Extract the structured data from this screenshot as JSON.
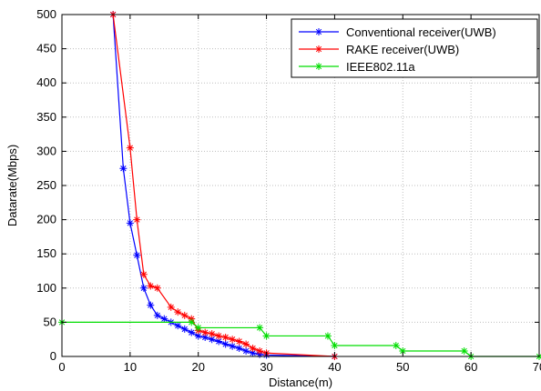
{
  "chart_data": {
    "type": "line",
    "xlabel": "Distance(m)",
    "ylabel": "Datarate(Mbps)",
    "xlim": [
      0,
      70
    ],
    "ylim": [
      0,
      500
    ],
    "xticks": [
      0,
      10,
      20,
      30,
      40,
      50,
      60,
      70
    ],
    "yticks": [
      0,
      50,
      100,
      150,
      200,
      250,
      300,
      350,
      400,
      450,
      500
    ],
    "grid": true,
    "legend_position": "top-right",
    "series": [
      {
        "name": "Conventional receiver(UWB)",
        "color": "#0000ff",
        "marker": "asterisk",
        "x": [
          7.5,
          9,
          10,
          11,
          12,
          13,
          14,
          15,
          16,
          17,
          18,
          19,
          20,
          21,
          22,
          23,
          24,
          25,
          26,
          27,
          28,
          29,
          30,
          40
        ],
        "y": [
          500,
          275,
          195,
          148,
          100,
          75,
          60,
          55,
          50,
          45,
          40,
          35,
          30,
          28,
          25,
          22,
          18,
          15,
          12,
          8,
          5,
          3,
          2,
          0
        ]
      },
      {
        "name": "RAKE receiver(UWB)",
        "color": "#ff0000",
        "marker": "asterisk",
        "x": [
          7.5,
          10,
          11,
          12,
          13,
          14,
          16,
          17,
          18,
          19,
          20,
          21,
          22,
          23,
          24,
          25,
          26,
          27,
          28,
          29,
          30,
          40
        ],
        "y": [
          500,
          305,
          200,
          120,
          103,
          100,
          72,
          65,
          60,
          55,
          38,
          35,
          33,
          30,
          28,
          25,
          22,
          18,
          12,
          8,
          5,
          0
        ]
      },
      {
        "name": "IEEE802.11a",
        "color": "#00dd00",
        "marker": "asterisk",
        "x": [
          0,
          19,
          20,
          29,
          30,
          39,
          40,
          49,
          50,
          59,
          60,
          70
        ],
        "y": [
          50,
          50,
          42,
          42,
          30,
          30,
          16,
          16,
          8,
          8,
          0,
          0
        ]
      }
    ]
  }
}
